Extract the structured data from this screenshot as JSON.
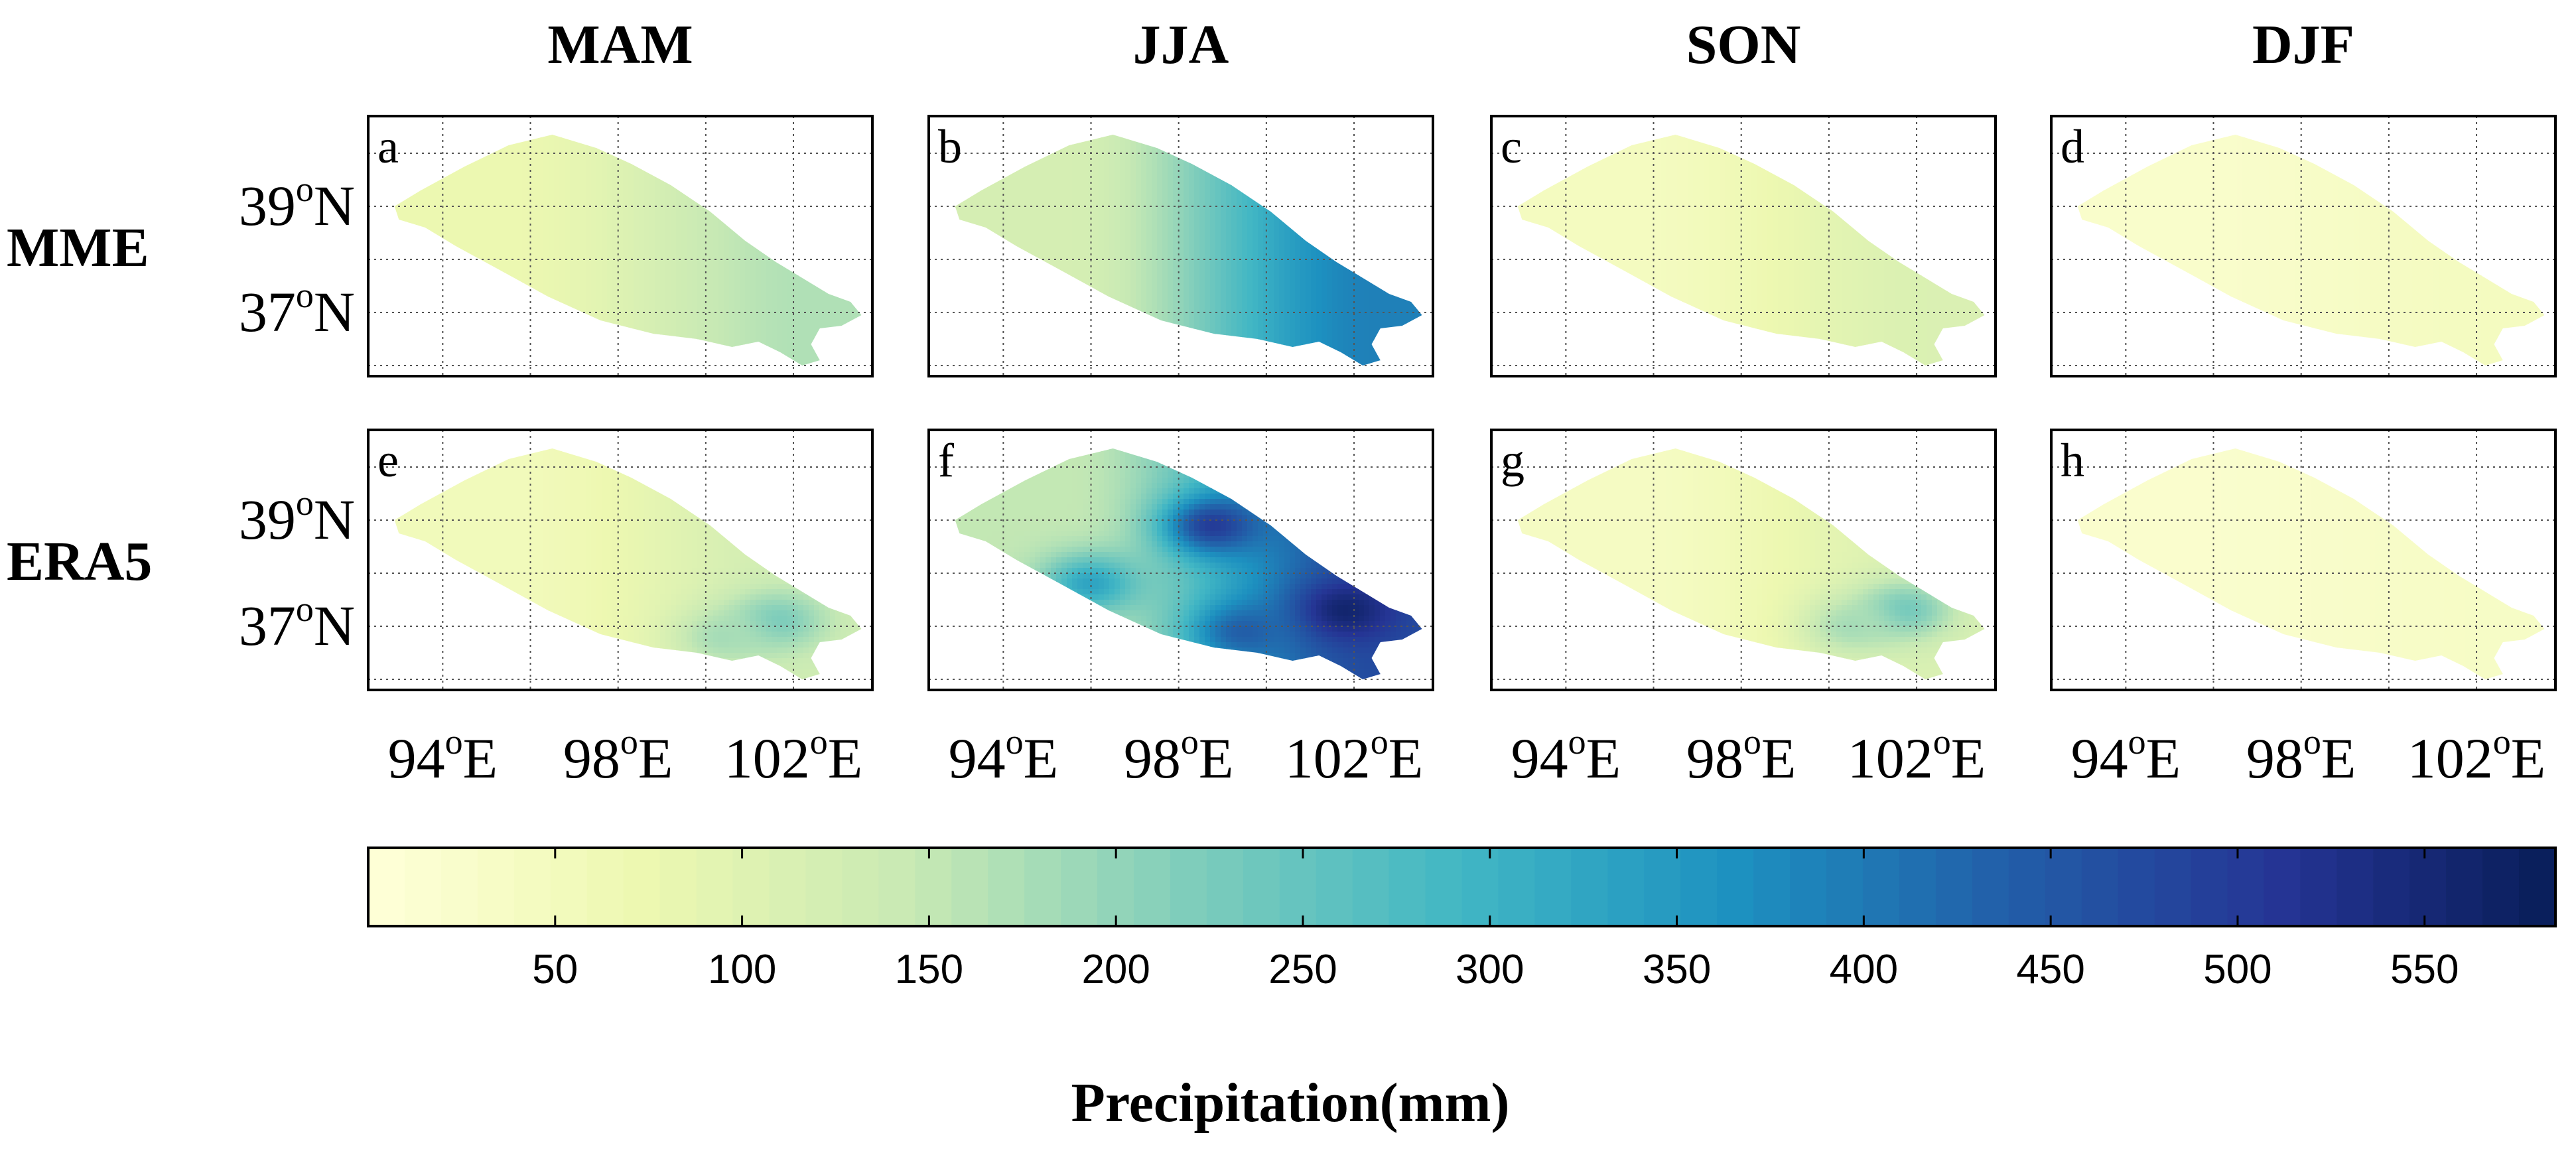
{
  "chart_data": {
    "type": "heatmap",
    "title": "",
    "colorbar": {
      "label": "Precipitation(mm)",
      "range": [
        0,
        585
      ],
      "ticks": [
        50,
        100,
        150,
        200,
        250,
        300,
        350,
        400,
        450,
        500,
        550
      ],
      "colormap": [
        "#ffffd9",
        "#edf8b1",
        "#c7e9b4",
        "#7fcdbb",
        "#41b6c4",
        "#1d91c0",
        "#225ea8",
        "#253494",
        "#081d58"
      ]
    },
    "columns": [
      "MAM",
      "JJA",
      "SON",
      "DJF"
    ],
    "rows": [
      "MME",
      "ERA5"
    ],
    "lat_ticks": [
      {
        "value": 39,
        "label": "39",
        "degree": "o",
        "hemisphere": "N"
      },
      {
        "value": 37,
        "label": "37",
        "degree": "o",
        "hemisphere": "N"
      }
    ],
    "lon_ticks": [
      {
        "value": 94,
        "label": "94",
        "degree": "o",
        "hemisphere": "E"
      },
      {
        "value": 98,
        "label": "98",
        "degree": "o",
        "hemisphere": "E"
      },
      {
        "value": 102,
        "label": "102",
        "degree": "o",
        "hemisphere": "E"
      }
    ],
    "lon_range": [
      92.3,
      103.8
    ],
    "lat_range": [
      35.8,
      40.7
    ],
    "gridlines": {
      "lon": [
        94,
        96,
        98,
        100,
        102
      ],
      "lat": [
        36,
        37,
        38,
        39,
        40
      ],
      "style": "dotted"
    },
    "panels": [
      {
        "letter": "a",
        "row": "MME",
        "season": "MAM",
        "base_mm": 75,
        "east_mm": 170,
        "blobs": []
      },
      {
        "letter": "b",
        "row": "MME",
        "season": "JJA",
        "base_mm": 120,
        "east_mm": 390,
        "blobs": []
      },
      {
        "letter": "c",
        "row": "MME",
        "season": "SON",
        "base_mm": 45,
        "east_mm": 110,
        "blobs": []
      },
      {
        "letter": "d",
        "row": "MME",
        "season": "DJF",
        "base_mm": 25,
        "east_mm": 45,
        "blobs": []
      },
      {
        "letter": "e",
        "row": "ERA5",
        "season": "MAM",
        "base_mm": 55,
        "east_mm": 130,
        "blobs": [
          {
            "lon": 101.6,
            "lat": 37.1,
            "mm": 230
          },
          {
            "lon": 100.4,
            "lat": 36.8,
            "mm": 180
          }
        ]
      },
      {
        "letter": "f",
        "row": "ERA5",
        "season": "JJA",
        "base_mm": 150,
        "east_mm": 470,
        "blobs": [
          {
            "lon": 98.8,
            "lat": 38.9,
            "mm": 500
          },
          {
            "lon": 101.8,
            "lat": 37.3,
            "mm": 560
          },
          {
            "lon": 96.0,
            "lat": 37.8,
            "mm": 330
          },
          {
            "lon": 99.5,
            "lat": 36.9,
            "mm": 440
          }
        ]
      },
      {
        "letter": "g",
        "row": "ERA5",
        "season": "SON",
        "base_mm": 40,
        "east_mm": 110,
        "blobs": [
          {
            "lon": 101.7,
            "lat": 37.3,
            "mm": 240
          },
          {
            "lon": 100.5,
            "lat": 37.0,
            "mm": 180
          }
        ]
      },
      {
        "letter": "h",
        "row": "ERA5",
        "season": "DJF",
        "base_mm": 22,
        "east_mm": 35,
        "blobs": []
      }
    ]
  }
}
